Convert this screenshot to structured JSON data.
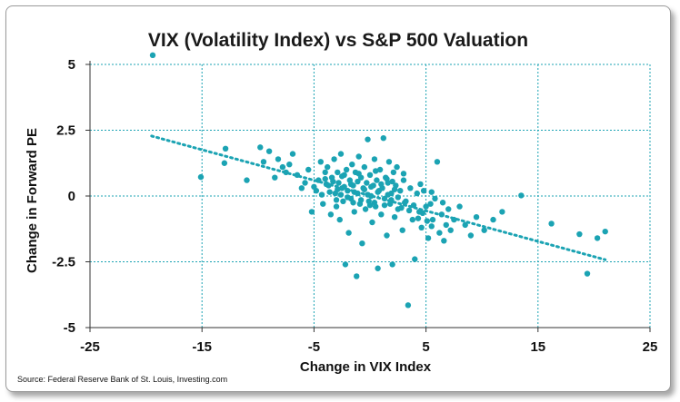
{
  "chart_data": {
    "type": "scatter",
    "title": "VIX (Volatility Index) vs S&P 500 Valuation",
    "xlabel": "Change in VIX Index",
    "ylabel": "Change in Forward PE",
    "xlim": [
      -25,
      25
    ],
    "ylim": [
      -5,
      5
    ],
    "xticks": [
      -25,
      -15,
      -5,
      5,
      15,
      25
    ],
    "yticks": [
      -5,
      -2.5,
      0,
      2.5,
      5
    ],
    "xtick_labels": [
      "-25",
      "-15",
      "-5",
      "5",
      "15",
      "25"
    ],
    "ytick_labels": [
      "-5",
      "-2.5",
      "0",
      "2.5",
      "5"
    ],
    "grid": true,
    "legend": "none",
    "point_color": "#1BA3B3",
    "grid_color": "#1BA3B3",
    "trendline": {
      "x": [
        -19.5,
        21
      ],
      "y": [
        2.28,
        -2.42
      ],
      "style": "dotted"
    },
    "source": "Source: Federal Reserve Bank of St. Louis, Investing.com",
    "points": [
      [
        -19.4,
        5.35
      ],
      [
        -15.1,
        0.72
      ],
      [
        -13,
        1.25
      ],
      [
        -12.9,
        1.8
      ],
      [
        -11,
        0.6
      ],
      [
        -9.8,
        1.85
      ],
      [
        -9.5,
        1.3
      ],
      [
        -9,
        1.7
      ],
      [
        -8.5,
        0.7
      ],
      [
        -8.2,
        1.4
      ],
      [
        -7.8,
        1.1
      ],
      [
        -7.5,
        0.9
      ],
      [
        -7.2,
        1.2
      ],
      [
        -6.9,
        1.6
      ],
      [
        -6.5,
        0.8
      ],
      [
        -6.1,
        0.3
      ],
      [
        -5.8,
        0.5
      ],
      [
        -5.5,
        1.0
      ],
      [
        -5.2,
        -0.6
      ],
      [
        -4.8,
        0.2
      ],
      [
        -4.6,
        0.6
      ],
      [
        -4.4,
        1.3
      ],
      [
        -4.2,
        -0.3
      ],
      [
        -4.0,
        0.9
      ],
      [
        -3.8,
        1.1
      ],
      [
        -3.7,
        0.4
      ],
      [
        -3.5,
        -0.7
      ],
      [
        -3.4,
        0.7
      ],
      [
        -3.2,
        1.4
      ],
      [
        -3.1,
        0.1
      ],
      [
        -3.0,
        -0.4
      ],
      [
        -2.9,
        0.9
      ],
      [
        -2.8,
        0.5
      ],
      [
        -2.7,
        -0.9
      ],
      [
        -2.6,
        1.6
      ],
      [
        -2.5,
        0.3
      ],
      [
        -2.4,
        -0.2
      ],
      [
        -2.3,
        0.8
      ],
      [
        -2.2,
        -2.6
      ],
      [
        -2.1,
        1.0
      ],
      [
        -2.0,
        0.2
      ],
      [
        -1.9,
        -1.4
      ],
      [
        -1.8,
        0.6
      ],
      [
        -1.7,
        -0.1
      ],
      [
        -1.6,
        1.2
      ],
      [
        -1.5,
        0.4
      ],
      [
        -1.4,
        -0.6
      ],
      [
        -1.3,
        0.9
      ],
      [
        -1.2,
        -3.05
      ],
      [
        -1.1,
        0.1
      ],
      [
        -1.0,
        1.5
      ],
      [
        -0.9,
        -0.3
      ],
      [
        -0.8,
        0.7
      ],
      [
        -0.7,
        -1.8
      ],
      [
        -0.6,
        0.3
      ],
      [
        -0.5,
        1.1
      ],
      [
        -0.4,
        -0.5
      ],
      [
        -0.3,
        0.5
      ],
      [
        -0.2,
        2.15
      ],
      [
        -0.1,
        -0.2
      ],
      [
        0.0,
        0.8
      ],
      [
        0.1,
        0.0
      ],
      [
        0.2,
        -1.0
      ],
      [
        0.3,
        0.4
      ],
      [
        0.4,
        1.4
      ],
      [
        0.5,
        -0.4
      ],
      [
        0.6,
        0.6
      ],
      [
        0.7,
        -2.75
      ],
      [
        0.8,
        0.2
      ],
      [
        0.9,
        1.0
      ],
      [
        1.0,
        -0.7
      ],
      [
        1.1,
        0.3
      ],
      [
        1.2,
        2.2
      ],
      [
        1.3,
        -0.1
      ],
      [
        1.4,
        0.7
      ],
      [
        1.5,
        -1.5
      ],
      [
        1.6,
        0.5
      ],
      [
        1.7,
        1.3
      ],
      [
        1.8,
        -0.3
      ],
      [
        1.9,
        0.1
      ],
      [
        2.0,
        -2.6
      ],
      [
        2.1,
        0.9
      ],
      [
        2.2,
        -0.8
      ],
      [
        2.3,
        0.4
      ],
      [
        2.4,
        1.1
      ],
      [
        2.5,
        -0.5
      ],
      [
        2.7,
        0.2
      ],
      [
        2.9,
        -1.3
      ],
      [
        3.0,
        0.6
      ],
      [
        3.2,
        -0.2
      ],
      [
        3.4,
        -4.15
      ],
      [
        3.6,
        0.3
      ],
      [
        3.8,
        -0.9
      ],
      [
        4.0,
        -2.4
      ],
      [
        4.2,
        0.1
      ],
      [
        4.4,
        -0.6
      ],
      [
        4.6,
        -1.2
      ],
      [
        4.8,
        0.2
      ],
      [
        5.0,
        -0.4
      ],
      [
        5.2,
        -1.6
      ],
      [
        5.4,
        -0.3
      ],
      [
        5.6,
        -0.9
      ],
      [
        5.8,
        -0.1
      ],
      [
        6.0,
        1.3
      ],
      [
        6.2,
        -1.4
      ],
      [
        6.4,
        -0.7
      ],
      [
        6.6,
        -1.7
      ],
      [
        6.8,
        -1.1
      ],
      [
        7.0,
        -0.5
      ],
      [
        7.2,
        -1.3
      ],
      [
        7.5,
        -0.9
      ],
      [
        8.0,
        -0.4
      ],
      [
        8.5,
        -1.1
      ],
      [
        9.0,
        -1.5
      ],
      [
        9.5,
        -0.8
      ],
      [
        10.2,
        -1.3
      ],
      [
        11.0,
        -0.9
      ],
      [
        11.8,
        -0.6
      ],
      [
        13.5,
        0.02
      ],
      [
        16.2,
        -1.05
      ],
      [
        18.7,
        -1.45
      ],
      [
        19.4,
        -2.95
      ],
      [
        20.3,
        -1.6
      ],
      [
        21.0,
        -1.35
      ],
      [
        -3.9,
        0.45
      ],
      [
        -3.6,
        0.15
      ],
      [
        -3.3,
        0.55
      ],
      [
        -2.9,
        0.25
      ],
      [
        -2.6,
        0.05
      ],
      [
        -2.3,
        0.35
      ],
      [
        -2.0,
        -0.05
      ],
      [
        -1.7,
        0.45
      ],
      [
        -1.4,
        0.15
      ],
      [
        -1.1,
        0.55
      ],
      [
        -0.8,
        -0.15
      ],
      [
        -0.5,
        0.25
      ],
      [
        -0.2,
        0.05
      ],
      [
        0.1,
        0.35
      ],
      [
        0.4,
        -0.25
      ],
      [
        0.7,
        0.15
      ],
      [
        1.0,
        0.45
      ],
      [
        1.3,
        -0.35
      ],
      [
        1.6,
        0.05
      ],
      [
        1.9,
        -0.15
      ],
      [
        2.2,
        0.25
      ],
      [
        2.5,
        -0.05
      ],
      [
        2.8,
        -0.45
      ],
      [
        3.1,
        -0.25
      ],
      [
        3.5,
        -0.55
      ],
      [
        3.9,
        -0.35
      ],
      [
        4.3,
        -0.85
      ],
      [
        4.7,
        -0.65
      ],
      [
        5.1,
        -0.95
      ],
      [
        5.5,
        -1.15
      ],
      [
        -4.3,
        0.05
      ],
      [
        -3.0,
        -0.15
      ],
      [
        -1.5,
        -0.25
      ],
      [
        0.0,
        -0.35
      ],
      [
        1.5,
        0.65
      ],
      [
        -2.5,
        0.75
      ],
      [
        -1.0,
        0.85
      ],
      [
        0.5,
        0.95
      ],
      [
        2.0,
        0.55
      ],
      [
        3.0,
        0.85
      ],
      [
        -5.0,
        0.35
      ],
      [
        -4.0,
        0.65
      ],
      [
        4.5,
        0.45
      ],
      [
        5.5,
        0.15
      ],
      [
        6.5,
        -0.25
      ]
    ]
  }
}
